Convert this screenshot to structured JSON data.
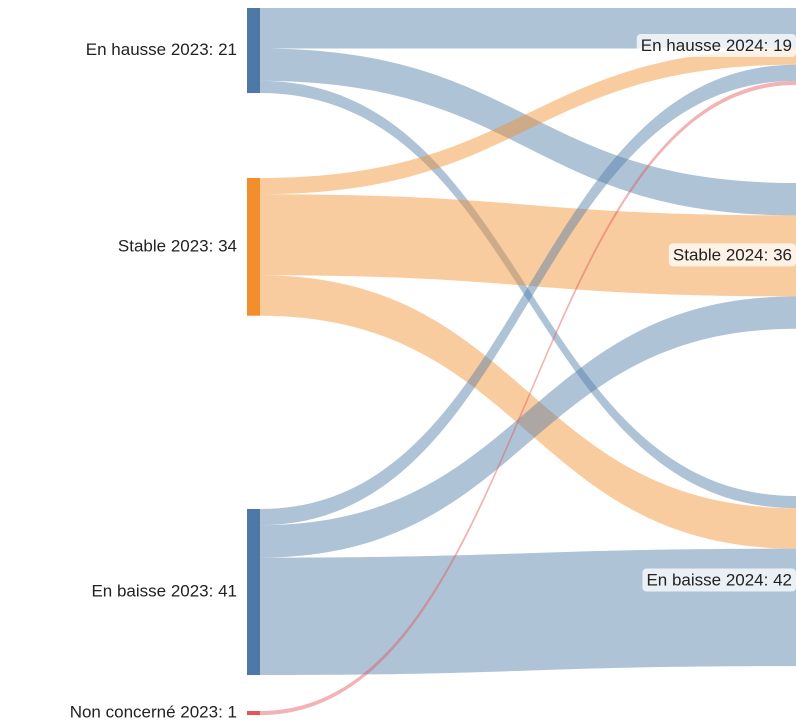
{
  "chart_data": {
    "type": "sankey",
    "nodes": [
      {
        "label": "En hausse 2023: 21",
        "value": 21,
        "color": "#4e79a7"
      },
      {
        "label": "Stable 2023: 34",
        "value": 34,
        "color": "#f28e2b"
      },
      {
        "label": "En baisse 2023: 41",
        "value": 41,
        "color": "#4e79a7"
      },
      {
        "label": "Non concerné 2023: 1",
        "value": 1,
        "color": "#e15759"
      },
      {
        "label": "En hausse 2024: 19",
        "value": 19,
        "color": "#4e79a7"
      },
      {
        "label": "Stable 2024: 36",
        "value": 36,
        "color": "#f28e2b"
      },
      {
        "label": "En baisse 2024: 42",
        "value": 42,
        "color": "#4e79a7"
      }
    ],
    "links": [
      {
        "source": 0,
        "target": 4,
        "value": 10
      },
      {
        "source": 0,
        "target": 5,
        "value": 8
      },
      {
        "source": 0,
        "target": 6,
        "value": 3
      },
      {
        "source": 1,
        "target": 4,
        "value": 4
      },
      {
        "source": 1,
        "target": 5,
        "value": 20
      },
      {
        "source": 1,
        "target": 6,
        "value": 10
      },
      {
        "source": 2,
        "target": 4,
        "value": 4
      },
      {
        "source": 2,
        "target": 5,
        "value": 8
      },
      {
        "source": 2,
        "target": 6,
        "value": 29
      },
      {
        "source": 3,
        "target": 4,
        "value": 1
      }
    ]
  }
}
